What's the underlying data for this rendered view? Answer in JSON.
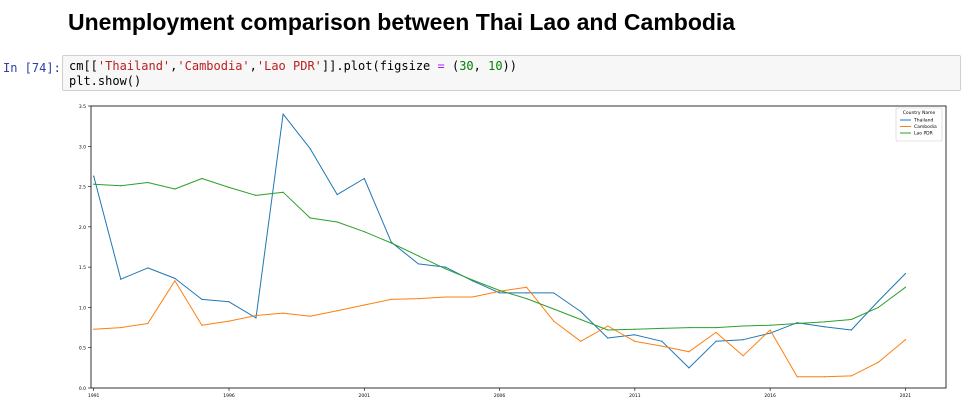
{
  "page": {
    "heading": "Unemployment comparison between Thai Lao and Cambodia"
  },
  "cell": {
    "prompt": "In [74]:",
    "code": {
      "t1": "cm[[",
      "s1": "'Thailand'",
      "c1": ",",
      "s2": "'Cambodia'",
      "c2": ",",
      "s3": "'Lao PDR'",
      "t2": "]].plot(figsize ",
      "op": "=",
      "t3": " (",
      "n1": "30",
      "c3": ", ",
      "n2": "10",
      "t4": "))",
      "line2": "plt.show()"
    }
  },
  "chart_data": {
    "type": "line",
    "title": "",
    "xlabel": "",
    "ylabel": "",
    "xlim": [
      1990.9,
      2022.5
    ],
    "ylim": [
      0,
      3.5
    ],
    "xticks": [
      "1991",
      "1996",
      "2001",
      "2006",
      "2011",
      "2016",
      "2021"
    ],
    "yticks": [
      "0.0",
      "0.5",
      "1.0",
      "1.5",
      "2.0",
      "2.5",
      "3.0",
      "3.5"
    ],
    "x": [
      1991,
      1992,
      1993,
      1994,
      1995,
      1996,
      1997,
      1998,
      1999,
      2000,
      2001,
      2002,
      2003,
      2004,
      2005,
      2006,
      2007,
      2008,
      2009,
      2010,
      2011,
      2012,
      2013,
      2014,
      2015,
      2016,
      2017,
      2018,
      2019,
      2020,
      2021
    ],
    "legend": {
      "title": "Country Name",
      "position": "top-right"
    },
    "grid": false,
    "series": [
      {
        "name": "Thailand",
        "color": "#1f77b4",
        "values": [
          2.63,
          1.35,
          1.49,
          1.36,
          1.1,
          1.07,
          0.87,
          3.4,
          2.97,
          2.4,
          2.6,
          1.81,
          1.54,
          1.5,
          1.33,
          1.18,
          1.18,
          1.18,
          0.95,
          0.62,
          0.66,
          0.58,
          0.25,
          0.58,
          0.6,
          0.68,
          0.81,
          0.76,
          0.72,
          1.08,
          1.42
        ]
      },
      {
        "name": "Cambodia",
        "color": "#ff7f0e",
        "values": [
          0.73,
          0.75,
          0.8,
          1.33,
          0.78,
          0.83,
          0.9,
          0.93,
          0.89,
          0.96,
          1.03,
          1.1,
          1.11,
          1.13,
          1.13,
          1.2,
          1.25,
          0.83,
          0.58,
          0.77,
          0.58,
          0.52,
          0.45,
          0.69,
          0.4,
          0.72,
          0.14,
          0.14,
          0.15,
          0.32,
          0.6
        ]
      },
      {
        "name": "Lao PDR",
        "color": "#2ca02c",
        "values": [
          2.53,
          2.51,
          2.55,
          2.47,
          2.6,
          2.49,
          2.39,
          2.43,
          2.11,
          2.06,
          1.94,
          1.8,
          1.64,
          1.48,
          1.34,
          1.21,
          1.11,
          0.98,
          0.85,
          0.72,
          0.73,
          0.74,
          0.75,
          0.75,
          0.77,
          0.78,
          0.8,
          0.82,
          0.85,
          1.0,
          1.25
        ]
      }
    ]
  }
}
